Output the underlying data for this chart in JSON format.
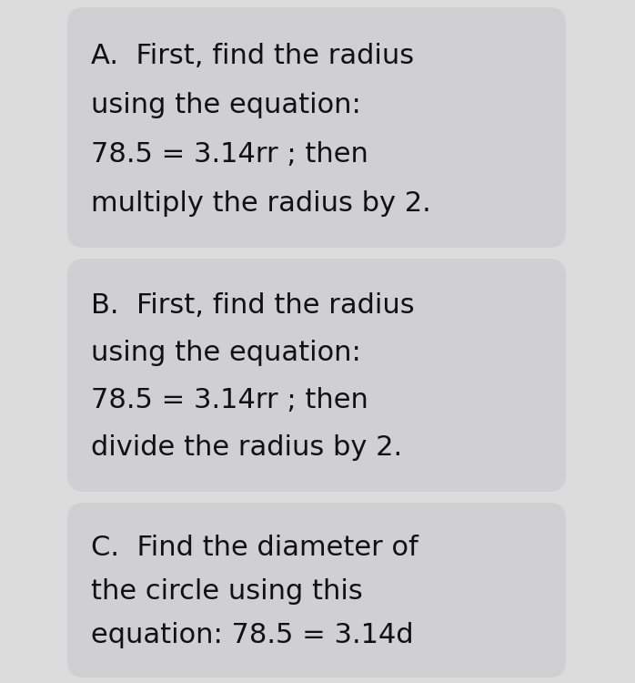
{
  "background_color": "#dcdcdc",
  "box_color": "#d0d0d2",
  "text_color": "#111111",
  "boxes": [
    {
      "lines": [
        "A.  First, find the radius",
        "using the equation:",
        "78.5 = 3.14rr ; then",
        "multiply the radius by 2."
      ]
    },
    {
      "lines": [
        "B.  First, find the radius",
        "using the equation:",
        "78.5 = 3.14rr ; then",
        "divide the radius by 2."
      ]
    },
    {
      "lines": [
        "C.  Find the diameter of",
        "the circle using this",
        "equation: 78.5 = 3.14d"
      ]
    }
  ],
  "font_size": 22,
  "font_family": "DejaVu Sans"
}
